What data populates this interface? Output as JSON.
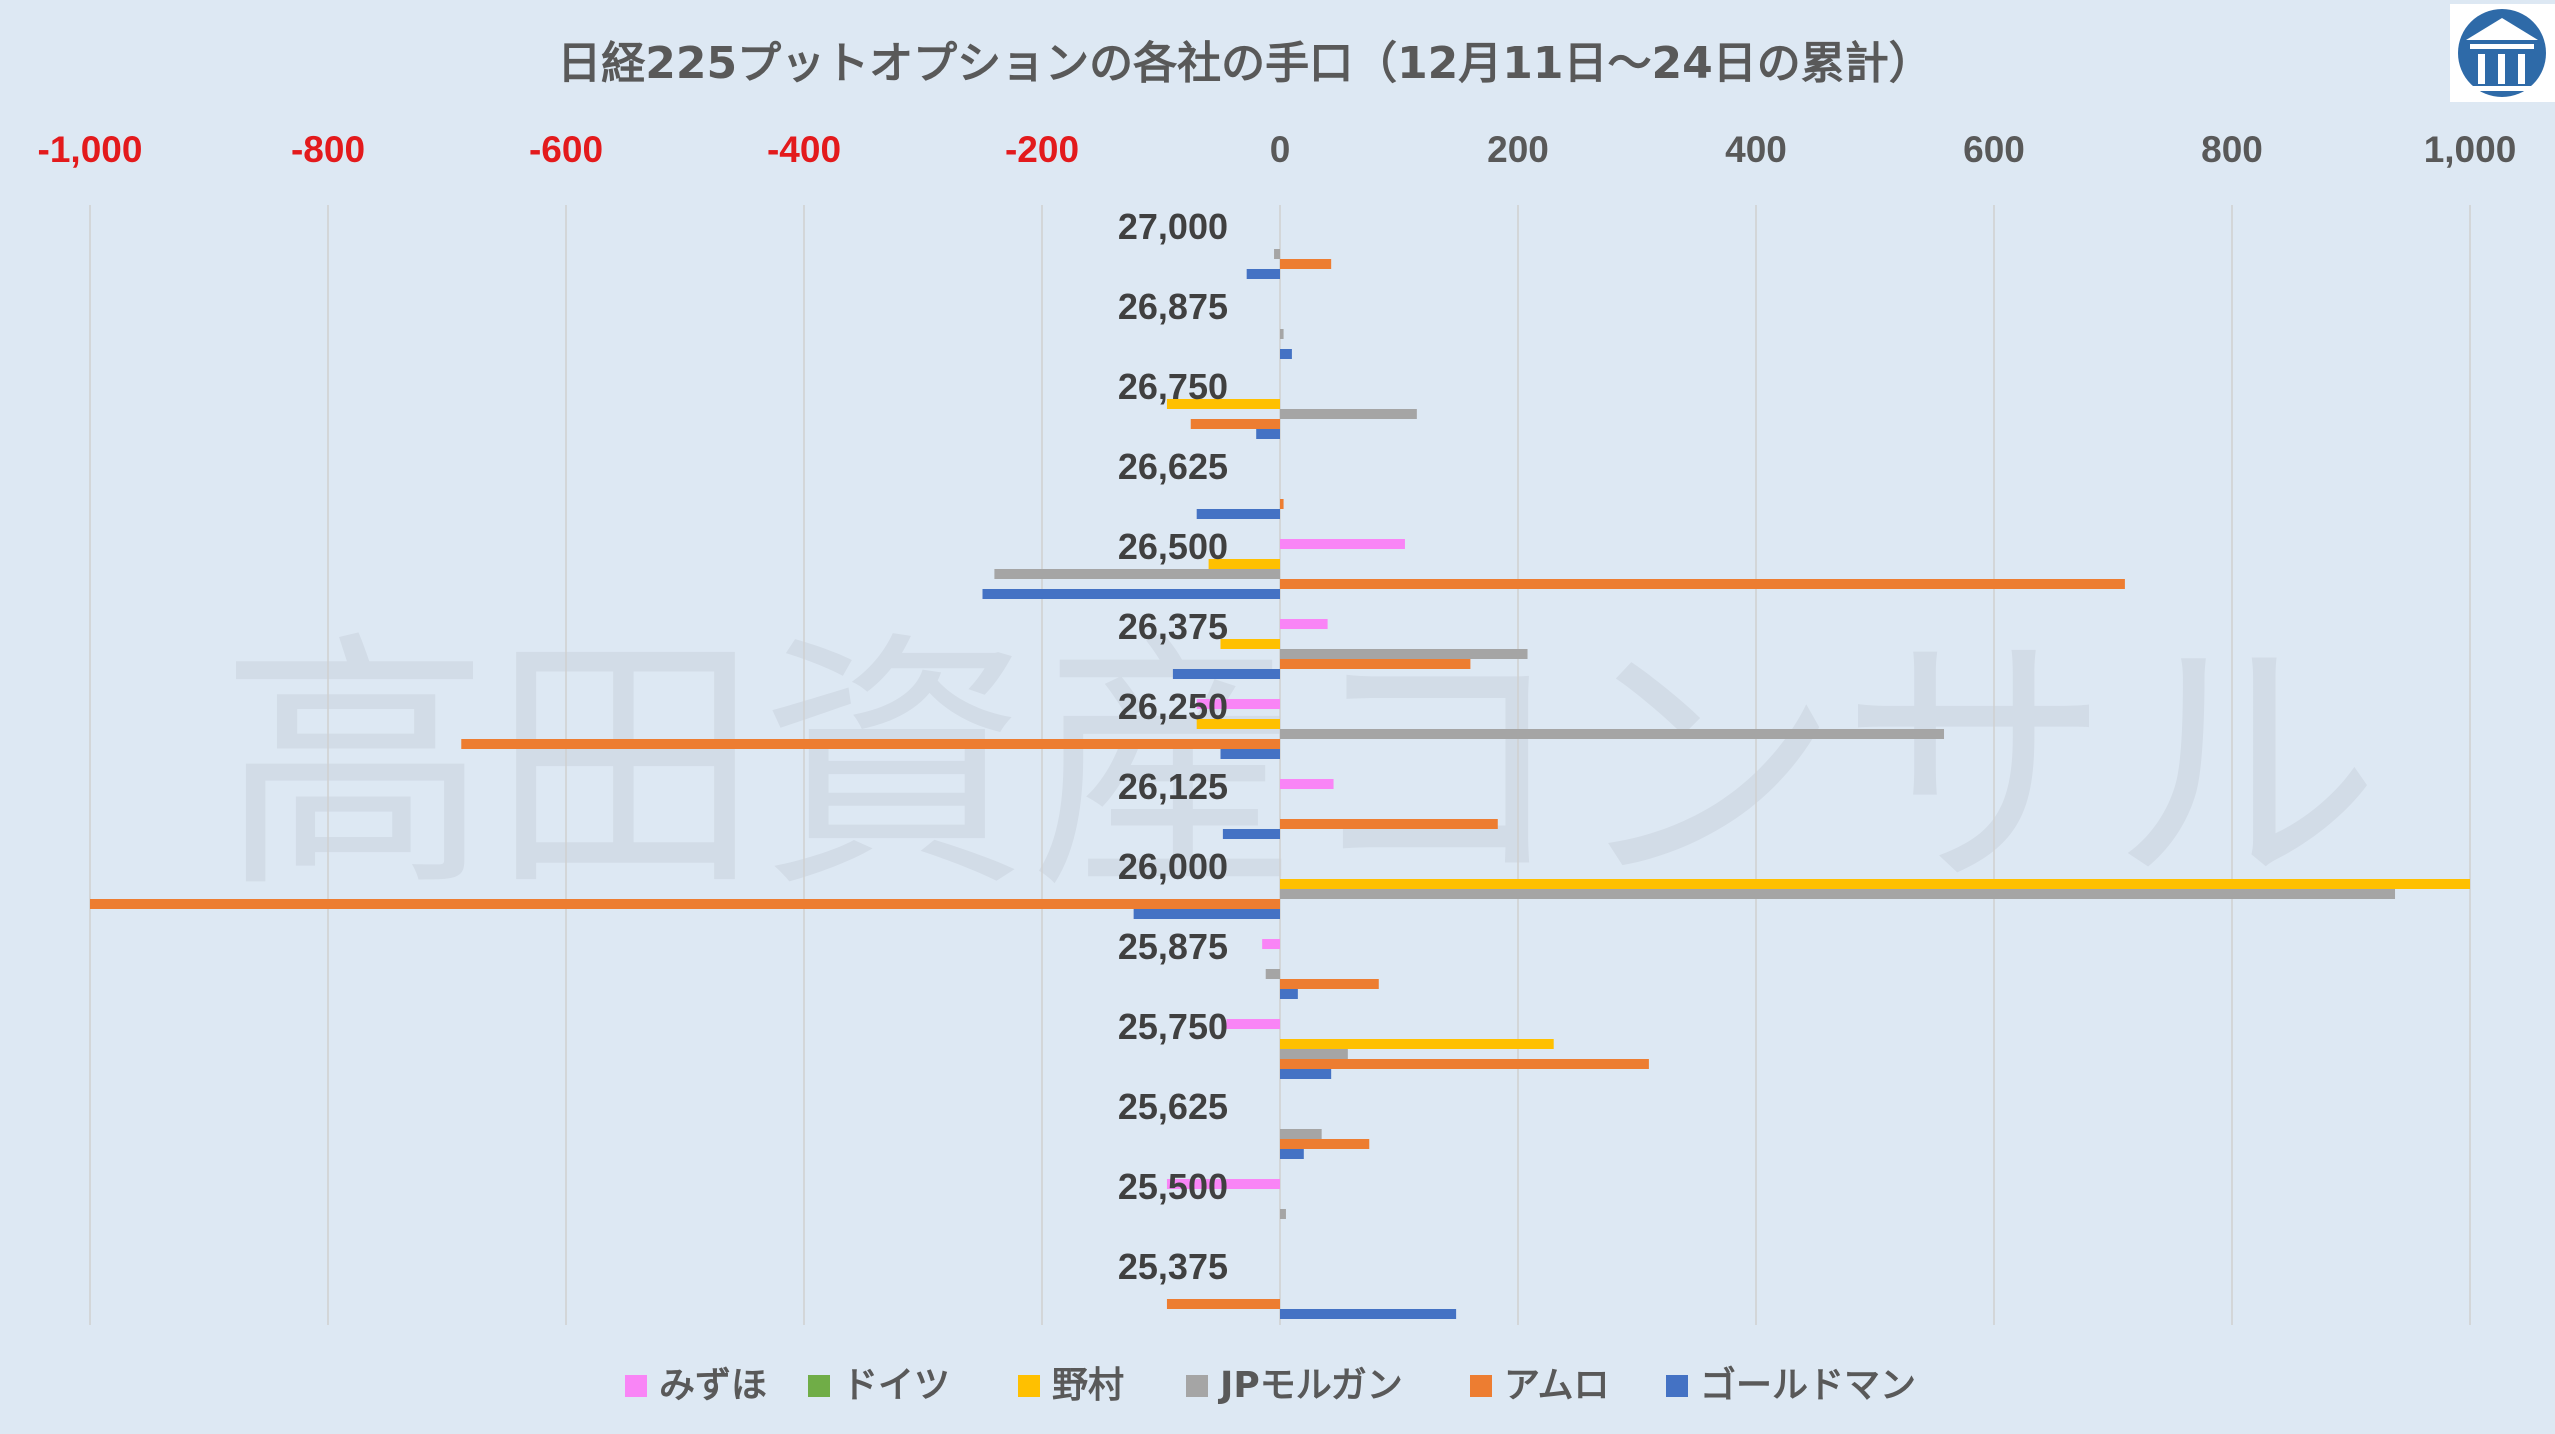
{
  "watermark": "高田資産コンサル",
  "logo": {
    "name": "building-logo",
    "color": "#2e6aa8"
  },
  "chart_data": {
    "type": "bar",
    "orientation": "horizontal",
    "title": "日経225プットオプションの各社の手口（12月11日〜24日の累計）",
    "xlim": [
      -1000,
      1000
    ],
    "x_ticks": [
      {
        "label": "-1,000",
        "value": -1000,
        "color": "#e31a1c"
      },
      {
        "label": "-800",
        "value": -800,
        "color": "#e31a1c"
      },
      {
        "label": "-600",
        "value": -600,
        "color": "#e31a1c"
      },
      {
        "label": "-400",
        "value": -400,
        "color": "#e31a1c"
      },
      {
        "label": "-200",
        "value": -200,
        "color": "#e31a1c"
      },
      {
        "label": "0",
        "value": 0,
        "color": "#595959"
      },
      {
        "label": "200",
        "value": 200,
        "color": "#595959"
      },
      {
        "label": "400",
        "value": 400,
        "color": "#595959"
      },
      {
        "label": "600",
        "value": 600,
        "color": "#595959"
      },
      {
        "label": "800",
        "value": 800,
        "color": "#595959"
      },
      {
        "label": "1,000",
        "value": 1000,
        "color": "#595959"
      }
    ],
    "grid": true,
    "legend_position": "bottom",
    "categories": [
      "27,000",
      "26,875",
      "26,750",
      "26,625",
      "26,500",
      "26,375",
      "26,250",
      "26,125",
      "26,000",
      "25,875",
      "25,750",
      "25,625",
      "25,500",
      "25,375"
    ],
    "series": [
      {
        "name": "みずほ",
        "color": "#f985f6",
        "values": [
          0,
          0,
          0,
          0,
          105,
          40,
          -70,
          45,
          0,
          -15,
          -45,
          0,
          -95,
          0
        ]
      },
      {
        "name": "ドイツ",
        "color": "#70ad47",
        "values": [
          0,
          0,
          0,
          0,
          0,
          0,
          0,
          0,
          0,
          0,
          0,
          0,
          0,
          0
        ]
      },
      {
        "name": "野村",
        "color": "#ffc000",
        "values": [
          0,
          0,
          -95,
          0,
          -60,
          -50,
          -70,
          0,
          1000,
          0,
          230,
          0,
          0,
          0
        ]
      },
      {
        "name": "JPモルガン",
        "color": "#a5a5a5",
        "values": [
          -5,
          3,
          115,
          0,
          -240,
          208,
          558,
          0,
          937,
          -12,
          57,
          35,
          5,
          0
        ]
      },
      {
        "name": "アムロ",
        "color": "#ed7d31",
        "values": [
          43,
          0,
          -75,
          3,
          710,
          160,
          -688,
          183,
          -1000,
          83,
          310,
          75,
          0,
          -95
        ]
      },
      {
        "name": "ゴールドマン",
        "color": "#4472c4",
        "values": [
          -28,
          10,
          -20,
          -70,
          -250,
          -90,
          -50,
          -48,
          -123,
          15,
          43,
          20,
          0,
          148
        ]
      }
    ]
  }
}
